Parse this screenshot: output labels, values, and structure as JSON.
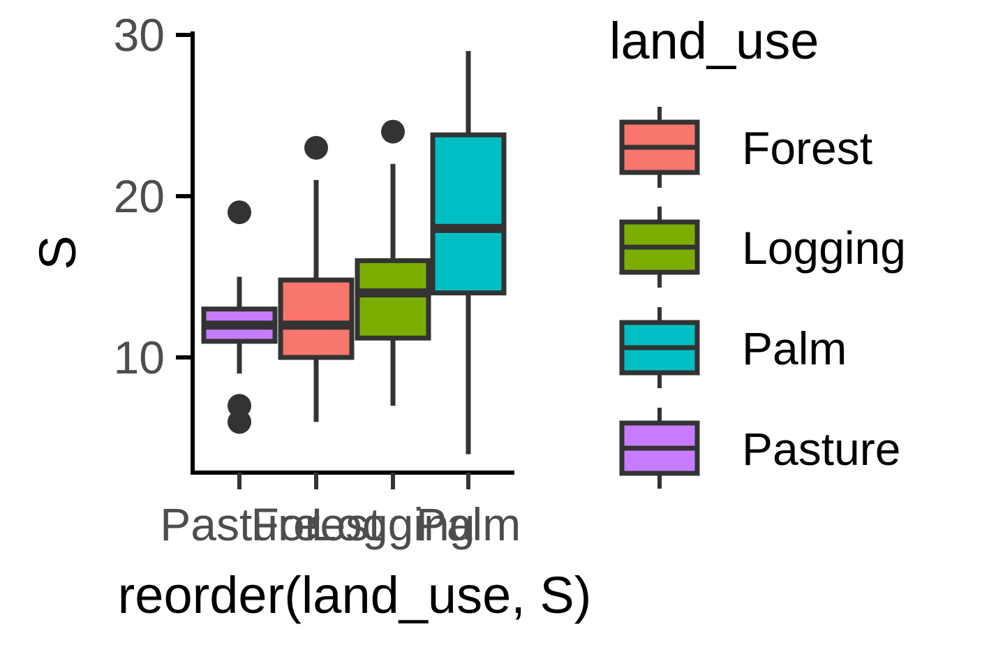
{
  "chart_data": {
    "type": "box",
    "xlabel": "reorder(land_use, S)",
    "ylabel": "S",
    "ylim": [
      3.5,
      30
    ],
    "yticks": [
      10,
      20,
      30
    ],
    "yticks_labels": [
      "10",
      "20",
      "30"
    ],
    "categories": [
      "Pasture",
      "Forest",
      "Logging",
      "Palm"
    ],
    "boxes": [
      {
        "category": "Pasture",
        "q1": 11,
        "median": 12,
        "q3": 13,
        "whisker_low": 9,
        "whisker_high": 15,
        "outliers": [
          19,
          7,
          6
        ],
        "color": "#C77CFF"
      },
      {
        "category": "Forest",
        "q1": 10,
        "median": 12,
        "q3": 14.8,
        "whisker_low": 6,
        "whisker_high": 21,
        "outliers": [
          23
        ],
        "color": "#F8766D"
      },
      {
        "category": "Logging",
        "q1": 11.2,
        "median": 14,
        "q3": 16,
        "whisker_low": 7,
        "whisker_high": 22,
        "outliers": [
          24
        ],
        "color": "#7CAE00"
      },
      {
        "category": "Palm",
        "q1": 14,
        "median": 18,
        "q3": 23.8,
        "whisker_low": 4,
        "whisker_high": 29,
        "outliers": [],
        "color": "#00BFC4"
      }
    ],
    "legend": {
      "title": "land_use",
      "placement": "right",
      "entries": [
        {
          "label": "Forest",
          "color": "#F8766D"
        },
        {
          "label": "Logging",
          "color": "#7CAE00"
        },
        {
          "label": "Palm",
          "color": "#00BFC4"
        },
        {
          "label": "Pasture",
          "color": "#C77CFF"
        }
      ]
    },
    "grid": false
  }
}
